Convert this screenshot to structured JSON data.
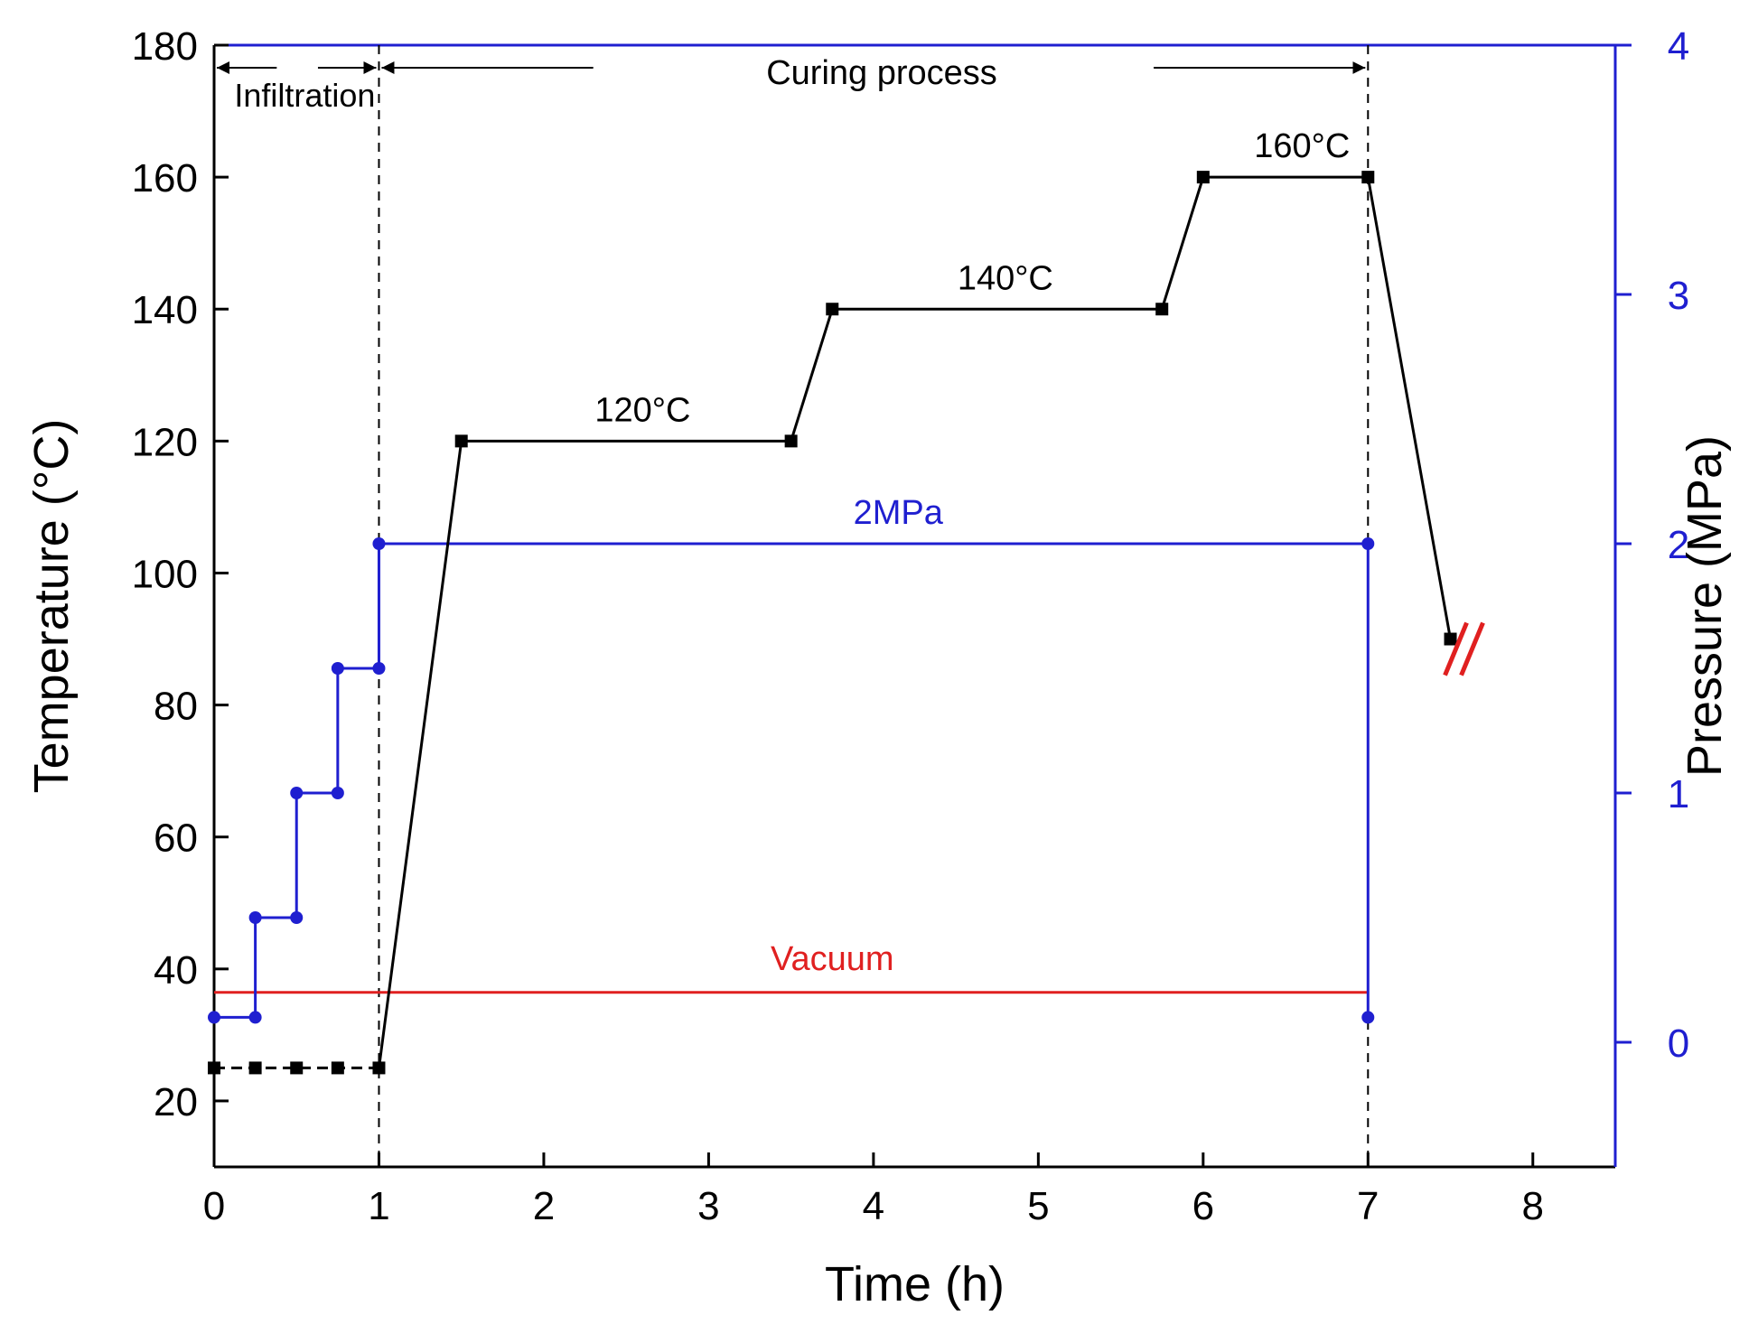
{
  "colors": {
    "temperature": "#000000",
    "pressure": "#1f1fd0",
    "vacuum": "#e02020",
    "break_mark": "#e02020",
    "axis_left": "#000000",
    "axis_right": "#1f1fd0"
  },
  "chart_data": {
    "type": "line",
    "title": "",
    "xlabel": "Time (h)",
    "ylabel_left": "Temperature (°C)",
    "ylabel_right": "Pressure (MPa)",
    "xlim": [
      0,
      8.5
    ],
    "ylim_left": [
      10,
      180
    ],
    "ylim_right": [
      -0.5,
      4
    ],
    "x_ticks": [
      0,
      1,
      2,
      3,
      4,
      5,
      6,
      7,
      8
    ],
    "y_left_ticks": [
      20,
      40,
      60,
      80,
      100,
      120,
      140,
      160,
      180
    ],
    "y_right_ticks": [
      0,
      1,
      2,
      3,
      4
    ],
    "grid": false,
    "series": [
      {
        "name": "Temperature",
        "axis": "left",
        "style": "square-markers",
        "points": [
          [
            0,
            25
          ],
          [
            0.25,
            25
          ],
          [
            0.5,
            25
          ],
          [
            0.75,
            25
          ],
          [
            1,
            25
          ],
          [
            1.5,
            120
          ],
          [
            3.5,
            120
          ],
          [
            3.75,
            140
          ],
          [
            5.75,
            140
          ],
          [
            6,
            160
          ],
          [
            7,
            160
          ],
          [
            7.5,
            90
          ]
        ],
        "dashed_until_x": 1
      },
      {
        "name": "Pressure",
        "axis": "right",
        "style": "circle-markers-step",
        "points": [
          [
            0,
            0.1
          ],
          [
            0.25,
            0.1
          ],
          [
            0.25,
            0.5
          ],
          [
            0.5,
            0.5
          ],
          [
            0.5,
            1.0
          ],
          [
            0.75,
            1.0
          ],
          [
            0.75,
            1.5
          ],
          [
            1,
            1.5
          ],
          [
            1,
            2.0
          ],
          [
            7,
            2.0
          ],
          [
            7,
            0.1
          ]
        ]
      },
      {
        "name": "Vacuum",
        "axis": "right",
        "style": "line",
        "points": [
          [
            0,
            0.2
          ],
          [
            7,
            0.2
          ]
        ]
      }
    ],
    "reference_lines_x": [
      1,
      7
    ],
    "annotations": {
      "infiltration": "Infiltration",
      "curing": "Curing process",
      "t120": "120°C",
      "t140": "140°C",
      "t160": "160°C",
      "p2": "2MPa",
      "vacuum": "Vacuum"
    }
  }
}
